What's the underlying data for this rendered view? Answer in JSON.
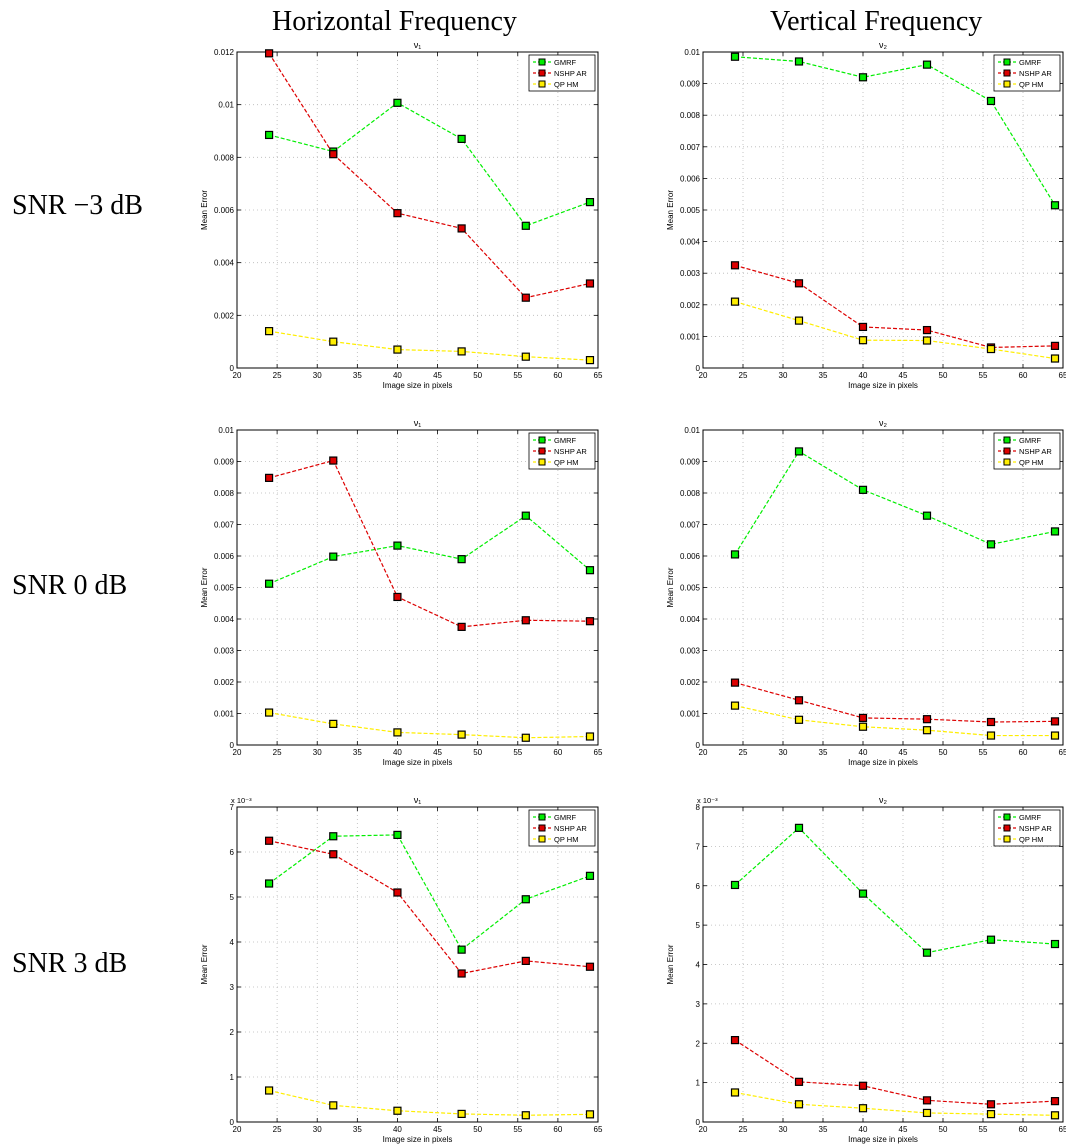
{
  "columns": [
    {
      "header": "Horizontal Frequency"
    },
    {
      "header": "Vertical Frequency"
    }
  ],
  "rows": [
    {
      "label": "SNR −3 dB"
    },
    {
      "label": "SNR 0 dB"
    },
    {
      "label": "SNR 3 dB"
    }
  ],
  "chart_data": [
    {
      "type": "line",
      "title": "ν₁",
      "subscript_title": "v1",
      "xlabel": "Image size in pixels",
      "ylabel": "Mean Error",
      "xlim": [
        20,
        65
      ],
      "ylim": [
        0,
        0.012
      ],
      "xticks": [
        "20",
        "25",
        "30",
        "35",
        "40",
        "45",
        "50",
        "55",
        "60",
        "65"
      ],
      "yticks": [
        "0",
        "0.002",
        "0.004",
        "0.006",
        "0.008",
        "0.01",
        "0.012"
      ],
      "scale_label": "",
      "grid": true,
      "legend": "top-right",
      "x": [
        24,
        32,
        40,
        48,
        56,
        64
      ],
      "series": [
        {
          "name": "GMRF",
          "color": "#00ee00",
          "values": [
            0.00885,
            0.00822,
            0.01007,
            0.0087,
            0.0054,
            0.0063
          ]
        },
        {
          "name": "NSHP AR",
          "color": "#dd0000",
          "values": [
            0.01195,
            0.00812,
            0.00588,
            0.0053,
            0.00267,
            0.00321
          ]
        },
        {
          "name": "QP HM",
          "color": "#ffee00",
          "values": [
            0.0014,
            0.001,
            0.0007,
            0.00063,
            0.00043,
            0.0003
          ]
        }
      ]
    },
    {
      "type": "line",
      "title": "ν₂",
      "subscript_title": "v2",
      "xlabel": "Image size in pixels",
      "ylabel": "Mean Error",
      "xlim": [
        20,
        65
      ],
      "ylim": [
        0,
        0.01
      ],
      "xticks": [
        "20",
        "25",
        "30",
        "35",
        "40",
        "45",
        "50",
        "55",
        "60",
        "65"
      ],
      "yticks": [
        "0",
        "0.001",
        "0.002",
        "0.003",
        "0.004",
        "0.005",
        "0.006",
        "0.007",
        "0.008",
        "0.009",
        "0.01"
      ],
      "scale_label": "",
      "grid": true,
      "legend": "top-right",
      "x": [
        24,
        32,
        40,
        48,
        56,
        64
      ],
      "series": [
        {
          "name": "GMRF",
          "color": "#00ee00",
          "values": [
            0.00985,
            0.0097,
            0.0092,
            0.0096,
            0.00845,
            0.00515
          ]
        },
        {
          "name": "NSHP AR",
          "color": "#dd0000",
          "values": [
            0.00325,
            0.00268,
            0.0013,
            0.0012,
            0.00065,
            0.0007
          ]
        },
        {
          "name": "QP HM",
          "color": "#ffee00",
          "values": [
            0.0021,
            0.0015,
            0.00088,
            0.00087,
            0.0006,
            0.0003
          ]
        }
      ]
    },
    {
      "type": "line",
      "title": "ν₁",
      "subscript_title": "v1",
      "xlabel": "Image size in pixels",
      "ylabel": "Mean Error",
      "xlim": [
        20,
        65
      ],
      "ylim": [
        0,
        0.01
      ],
      "xticks": [
        "20",
        "25",
        "30",
        "35",
        "40",
        "45",
        "50",
        "55",
        "60",
        "65"
      ],
      "yticks": [
        "0",
        "0.001",
        "0.002",
        "0.003",
        "0.004",
        "0.005",
        "0.006",
        "0.007",
        "0.008",
        "0.009",
        "0.01"
      ],
      "scale_label": "",
      "grid": true,
      "legend": "top-right",
      "x": [
        24,
        32,
        40,
        48,
        56,
        64
      ],
      "series": [
        {
          "name": "GMRF",
          "color": "#00ee00",
          "values": [
            0.00512,
            0.00598,
            0.00633,
            0.0059,
            0.00728,
            0.00555
          ]
        },
        {
          "name": "NSHP AR",
          "color": "#dd0000",
          "values": [
            0.00848,
            0.00903,
            0.0047,
            0.00375,
            0.00396,
            0.00393
          ]
        },
        {
          "name": "QP HM",
          "color": "#ffee00",
          "values": [
            0.00103,
            0.00067,
            0.0004,
            0.00033,
            0.00023,
            0.00027
          ]
        }
      ]
    },
    {
      "type": "line",
      "title": "ν₂",
      "subscript_title": "v2",
      "xlabel": "Image size in pixels",
      "ylabel": "Mean Error",
      "xlim": [
        20,
        65
      ],
      "ylim": [
        0,
        0.01
      ],
      "xticks": [
        "20",
        "25",
        "30",
        "35",
        "40",
        "45",
        "50",
        "55",
        "60",
        "65"
      ],
      "yticks": [
        "0",
        "0.001",
        "0.002",
        "0.003",
        "0.004",
        "0.005",
        "0.006",
        "0.007",
        "0.008",
        "0.009",
        "0.01"
      ],
      "scale_label": "",
      "grid": true,
      "legend": "top-right",
      "x": [
        24,
        32,
        40,
        48,
        56,
        64
      ],
      "series": [
        {
          "name": "GMRF",
          "color": "#00ee00",
          "values": [
            0.00605,
            0.00932,
            0.0081,
            0.00728,
            0.00637,
            0.00678
          ]
        },
        {
          "name": "NSHP AR",
          "color": "#dd0000",
          "values": [
            0.00198,
            0.00142,
            0.00086,
            0.00082,
            0.00073,
            0.00075
          ]
        },
        {
          "name": "QP HM",
          "color": "#ffee00",
          "values": [
            0.00125,
            0.0008,
            0.00058,
            0.00047,
            0.0003,
            0.0003
          ]
        }
      ]
    },
    {
      "type": "line",
      "title": "ν₁",
      "subscript_title": "v1",
      "xlabel": "Image size in pixels",
      "ylabel": "Mean Error",
      "xlim": [
        20,
        65
      ],
      "ylim": [
        0,
        7
      ],
      "xticks": [
        "20",
        "25",
        "30",
        "35",
        "40",
        "45",
        "50",
        "55",
        "60",
        "65"
      ],
      "yticks": [
        "0",
        "1",
        "2",
        "3",
        "4",
        "5",
        "6",
        "7"
      ],
      "scale_label": "x 10⁻³",
      "grid": true,
      "legend": "top-right",
      "x": [
        24,
        32,
        40,
        48,
        56,
        64
      ],
      "series": [
        {
          "name": "GMRF",
          "color": "#00ee00",
          "values": [
            5.3,
            6.35,
            6.38,
            3.83,
            4.95,
            5.47
          ]
        },
        {
          "name": "NSHP AR",
          "color": "#dd0000",
          "values": [
            6.25,
            5.95,
            5.1,
            3.3,
            3.58,
            3.45
          ]
        },
        {
          "name": "QP HM",
          "color": "#ffee00",
          "values": [
            0.7,
            0.37,
            0.25,
            0.18,
            0.15,
            0.17
          ]
        }
      ]
    },
    {
      "type": "line",
      "title": "ν₂",
      "subscript_title": "v2",
      "xlabel": "Image size in pixels",
      "ylabel": "Mean Error",
      "xlim": [
        20,
        65
      ],
      "ylim": [
        0,
        8
      ],
      "xticks": [
        "20",
        "25",
        "30",
        "35",
        "40",
        "45",
        "50",
        "55",
        "60",
        "65"
      ],
      "yticks": [
        "0",
        "1",
        "2",
        "3",
        "4",
        "5",
        "6",
        "7",
        "8"
      ],
      "scale_label": "x 10⁻³",
      "grid": true,
      "legend": "top-right",
      "x": [
        24,
        32,
        40,
        48,
        56,
        64
      ],
      "series": [
        {
          "name": "GMRF",
          "color": "#00ee00",
          "values": [
            6.02,
            7.47,
            5.8,
            4.3,
            4.63,
            4.52
          ]
        },
        {
          "name": "NSHP AR",
          "color": "#dd0000",
          "values": [
            2.08,
            1.02,
            0.92,
            0.55,
            0.45,
            0.53
          ]
        },
        {
          "name": "QP HM",
          "color": "#ffee00",
          "values": [
            0.75,
            0.45,
            0.35,
            0.23,
            0.2,
            0.17
          ]
        }
      ]
    }
  ]
}
